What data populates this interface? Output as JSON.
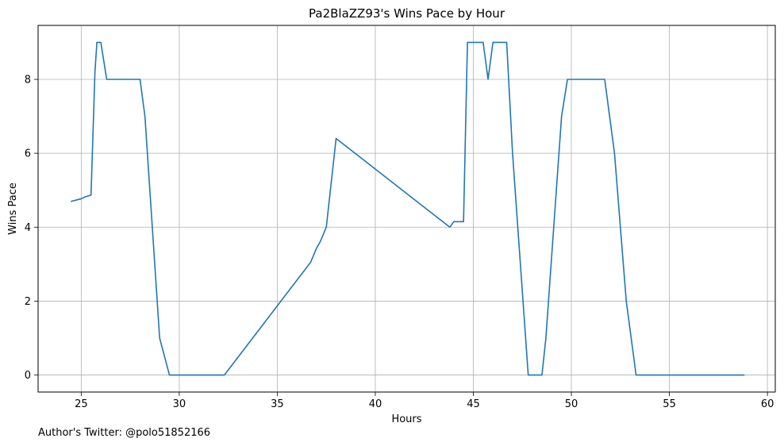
{
  "chart_data": {
    "type": "line",
    "title": "Pa2BlaZZ93's Wins Pace by Hour",
    "xlabel": "Hours",
    "ylabel": "Wins Pace",
    "xlim": [
      22.8,
      60.4
    ],
    "ylim": [
      -0.46,
      9.46
    ],
    "xticks": [
      25,
      30,
      35,
      40,
      45,
      50,
      55,
      60
    ],
    "yticks": [
      0,
      2,
      4,
      6,
      8
    ],
    "grid": true,
    "series_color": "#1f77b4",
    "series": [
      {
        "x": [
          24.5,
          25.0,
          25.2,
          25.5,
          25.7,
          25.8,
          26.0,
          26.3,
          28.0,
          28.25,
          29.0,
          29.5,
          32.3,
          36.7,
          37.0,
          37.2,
          37.5,
          38.0,
          43.8,
          44.0,
          44.5,
          44.7,
          45.5,
          45.75,
          46.0,
          46.7,
          47.0,
          47.8,
          48.5,
          48.7,
          49.5,
          49.8,
          51.7,
          52.2,
          52.8,
          53.3,
          58.8
        ],
        "y": [
          4.7,
          4.77,
          4.82,
          4.87,
          8.2,
          9.0,
          9.0,
          8.0,
          8.0,
          7.0,
          1.0,
          0.0,
          0.0,
          3.05,
          3.43,
          3.62,
          4.0,
          6.4,
          4.0,
          4.15,
          4.15,
          9.0,
          9.0,
          8.0,
          9.0,
          9.0,
          6.0,
          0.0,
          0.0,
          1.0,
          7.0,
          8.0,
          8.0,
          6.0,
          2.0,
          0.0,
          0.0
        ]
      }
    ]
  },
  "footnote": "Author's Twitter: @polo51852166"
}
